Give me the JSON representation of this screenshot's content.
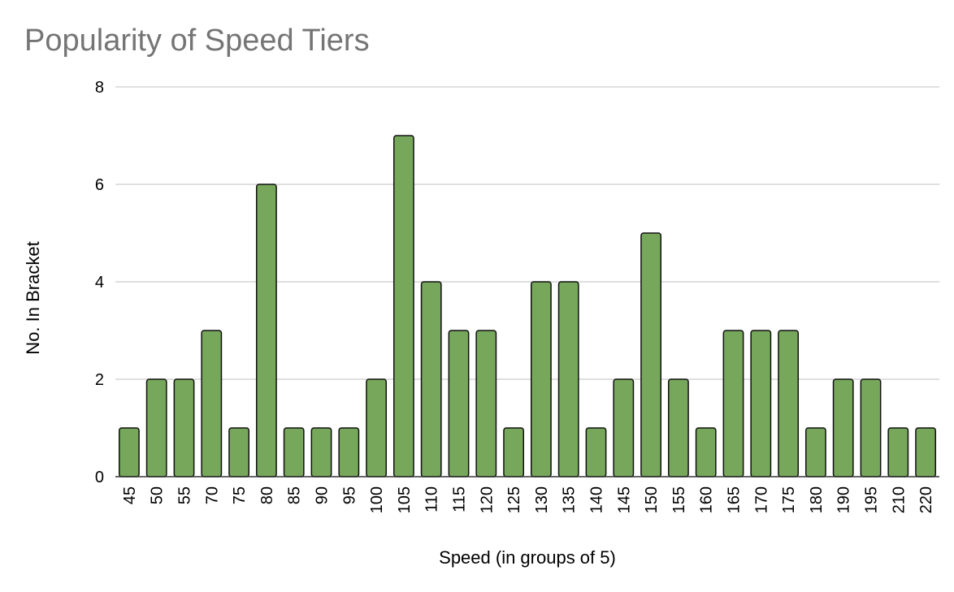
{
  "chart_data": {
    "type": "bar",
    "title": "Popularity of Speed Tiers",
    "xlabel": "Speed (in groups of 5)",
    "ylabel": "No. In Bracket",
    "ylim": [
      0,
      8
    ],
    "yticks": [
      0,
      2,
      4,
      6,
      8
    ],
    "grid": true,
    "legend": "none",
    "bar_color": "#76a75a",
    "categories": [
      "45",
      "50",
      "55",
      "70",
      "75",
      "80",
      "85",
      "90",
      "95",
      "100",
      "105",
      "110",
      "115",
      "120",
      "125",
      "130",
      "135",
      "140",
      "145",
      "150",
      "155",
      "160",
      "165",
      "170",
      "175",
      "180",
      "190",
      "195",
      "210",
      "220"
    ],
    "values": [
      1,
      2,
      2,
      3,
      1,
      6,
      1,
      1,
      1,
      2,
      7,
      4,
      3,
      3,
      1,
      4,
      4,
      1,
      2,
      5,
      2,
      1,
      3,
      3,
      3,
      1,
      2,
      2,
      1,
      1
    ]
  }
}
